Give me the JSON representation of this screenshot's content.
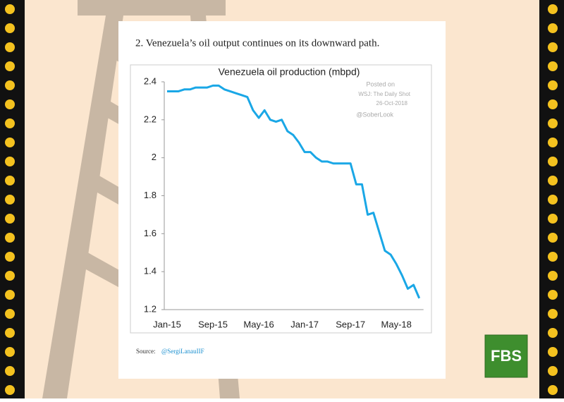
{
  "heading": "2. Venezuela’s oil output continues on its downward path.",
  "chart_data": {
    "type": "line",
    "title": "Venezuela oil production (mbpd)",
    "categories": [
      "Jan-15",
      null,
      null,
      null,
      null,
      null,
      null,
      null,
      "Sep-15",
      null,
      null,
      null,
      null,
      null,
      null,
      null,
      "May-16",
      null,
      null,
      null,
      null,
      null,
      null,
      null,
      "Jan-17",
      null,
      null,
      null,
      null,
      null,
      null,
      null,
      "Sep-17",
      null,
      null,
      null,
      null,
      null,
      null,
      null,
      "May-18",
      null,
      null,
      null,
      null
    ],
    "series": [
      {
        "name": "Venezuela oil production",
        "color": "#1aa7e6",
        "values": [
          2.35,
          2.35,
          2.35,
          2.36,
          2.36,
          2.37,
          2.37,
          2.37,
          2.38,
          2.38,
          2.36,
          2.35,
          2.34,
          2.33,
          2.32,
          2.25,
          2.21,
          2.25,
          2.2,
          2.19,
          2.2,
          2.14,
          2.12,
          2.08,
          2.03,
          2.03,
          2.0,
          1.98,
          1.98,
          1.97,
          1.97,
          1.97,
          1.97,
          1.86,
          1.86,
          1.7,
          1.71,
          1.61,
          1.51,
          1.49,
          1.44,
          1.38,
          1.31,
          1.33,
          1.26
        ]
      }
    ],
    "ylim": [
      1.2,
      2.4
    ],
    "yticks": [
      1.2,
      1.4,
      1.6,
      1.8,
      2,
      2.2,
      2.4
    ],
    "grid": false,
    "annotations": [
      "Posted on",
      "WSJ: The Daily Shot",
      "26-Oct-2018",
      "@SoberLook"
    ]
  },
  "source": {
    "label": "Source:",
    "link": "@SergiLanauIIF"
  },
  "logo": "FBS"
}
